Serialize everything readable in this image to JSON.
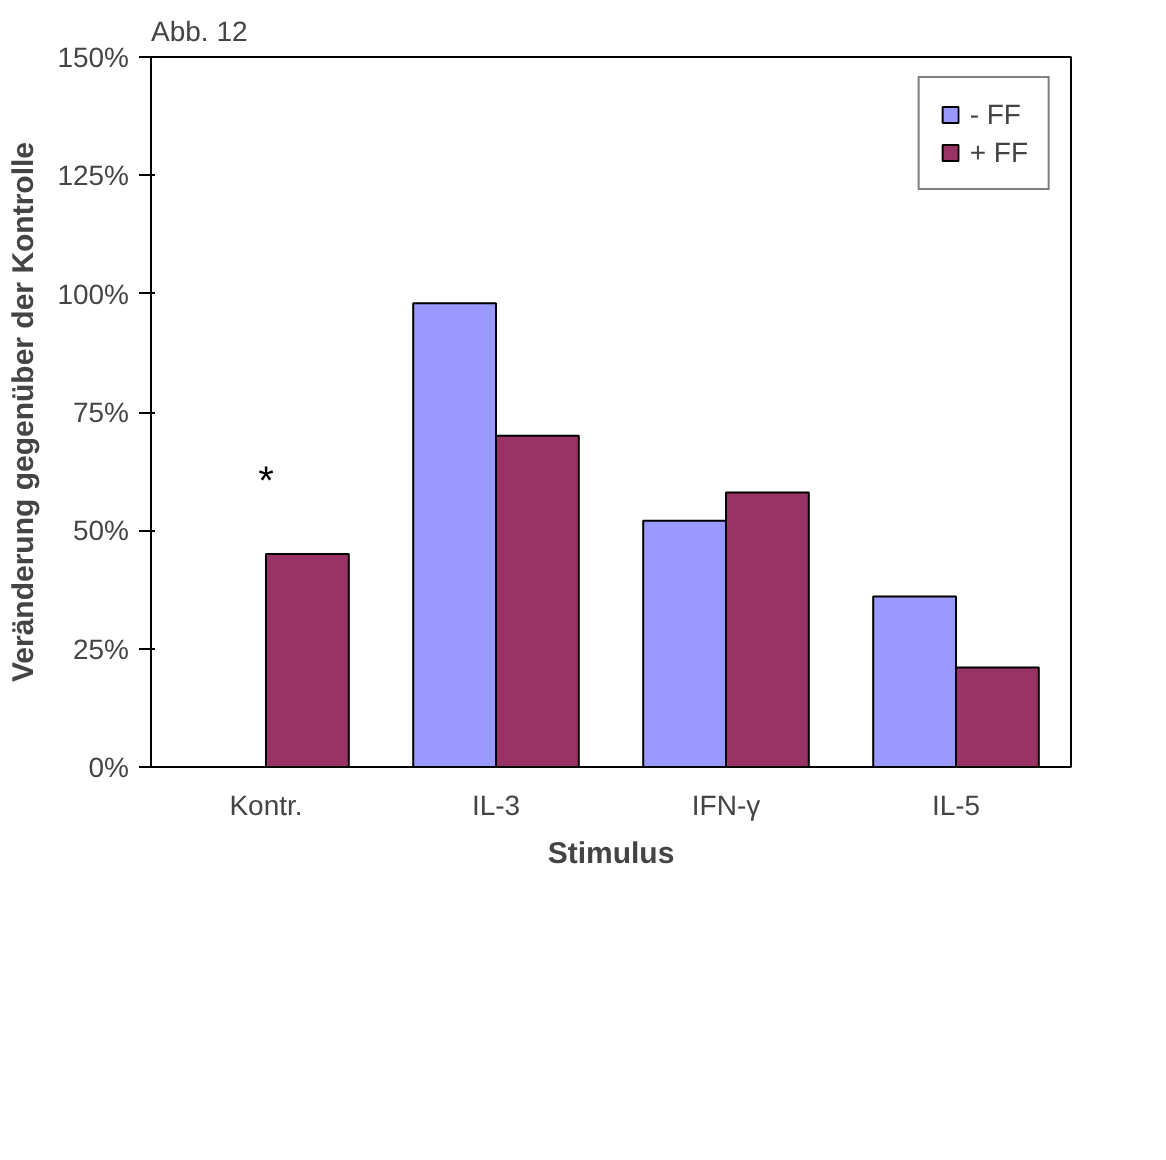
{
  "chart_data": {
    "type": "bar",
    "title": "Abb. 12",
    "xlabel": "Stimulus",
    "ylabel": "Veränderung gegenüber der Kontrolle",
    "categories": [
      "Kontr.",
      "IL-3",
      "IFN-γ",
      "IL-5"
    ],
    "series": [
      {
        "name": "- FF",
        "color": "#9999ff",
        "values": [
          null,
          98,
          52,
          36
        ]
      },
      {
        "name": "+ FF",
        "color": "#993366",
        "values": [
          45,
          70,
          58,
          21
        ]
      }
    ],
    "ylim": [
      0,
      150
    ],
    "yticks": [
      {
        "value": 0,
        "label": "0%"
      },
      {
        "value": 25,
        "label": "25%"
      },
      {
        "value": 50,
        "label": "50%"
      },
      {
        "value": 75,
        "label": "75%"
      },
      {
        "value": 100,
        "label": "100%"
      },
      {
        "value": 125,
        "label": "125%"
      },
      {
        "value": 150,
        "label": "150%"
      }
    ],
    "annotations": [
      "*"
    ],
    "grid": false,
    "legend": "top right"
  }
}
